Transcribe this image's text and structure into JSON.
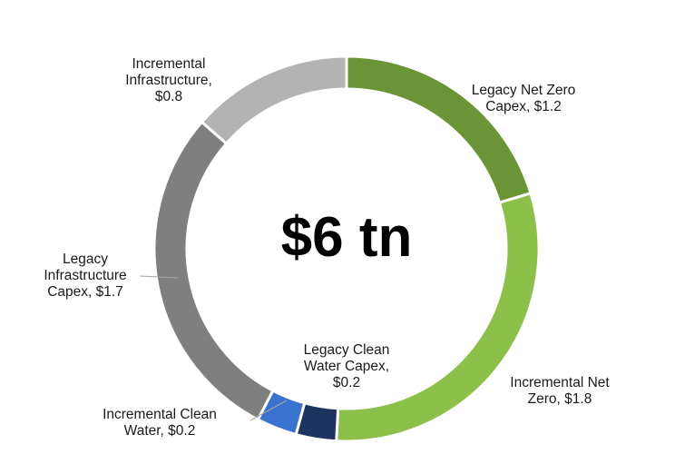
{
  "chart_data": {
    "type": "pie",
    "subtype": "donut",
    "center_label": "$6 tn",
    "start_angle_deg": 0,
    "direction": "clockwise",
    "slices": [
      {
        "label_lines": [
          "Legacy Net Zero",
          "Capex, $1.2"
        ],
        "value": 1.2,
        "color": "#6a9436"
      },
      {
        "label_lines": [
          "Incremental Net",
          "Zero, $1.8"
        ],
        "value": 1.8,
        "color": "#8dc04a"
      },
      {
        "label_lines": [
          "Legacy Clean",
          "Water Capex,",
          "$0.2"
        ],
        "value": 0.2,
        "color": "#1d3461"
      },
      {
        "label_lines": [
          "Incremental Clean",
          "Water, $0.2"
        ],
        "value": 0.2,
        "color": "#3a72cf"
      },
      {
        "label_lines": [
          "Legacy",
          "Infrastructure",
          "Capex, $1.7"
        ],
        "value": 1.7,
        "color": "#7f7f7f"
      },
      {
        "label_lines": [
          "Incremental",
          "Infrastructure,",
          "$0.8"
        ],
        "value": 0.8,
        "color": "#b3b3b3"
      }
    ]
  }
}
